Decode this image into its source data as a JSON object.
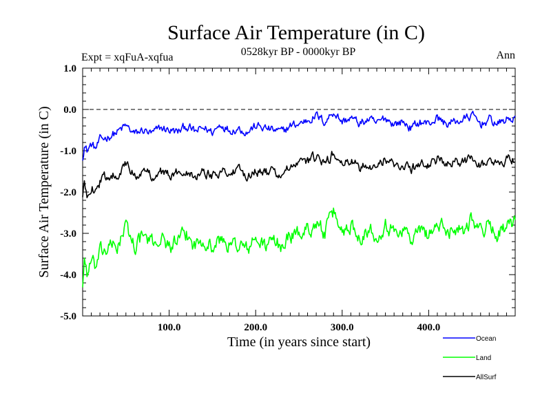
{
  "chart_data": {
    "type": "line",
    "title": "Surface Air Temperature (in C)",
    "subtitle": "0528kyr BP - 0000kyr BP",
    "experiment": "Expt = xqFuA-xqfua",
    "season": "Ann",
    "xlabel": "Time (in years since start)",
    "ylabel": "Surface Air Temperature (in C)",
    "xlim": [
      0,
      500
    ],
    "ylim": [
      -5.0,
      1.0
    ],
    "x_ticks": [
      100,
      200,
      300,
      400
    ],
    "x_tick_labels": [
      "100.0",
      "200.0",
      "300.0",
      "400.0"
    ],
    "y_ticks": [
      1.0,
      0.0,
      -1.0,
      -2.0,
      -3.0,
      -4.0,
      -5.0
    ],
    "y_tick_labels": [
      "1.0",
      "0.0",
      "-1.0",
      "-2.0",
      "-3.0",
      "-4.0",
      "-5.0"
    ],
    "reference_line": 0.0,
    "series": [
      {
        "name": "Ocean",
        "color": "#0000ff",
        "x": [
          0,
          2,
          5,
          10,
          15,
          20,
          30,
          40,
          50,
          60,
          70,
          80,
          90,
          100,
          110,
          120,
          130,
          140,
          150,
          160,
          170,
          180,
          190,
          200,
          210,
          220,
          230,
          240,
          250,
          260,
          270,
          280,
          290,
          300,
          310,
          320,
          330,
          340,
          350,
          360,
          370,
          380,
          390,
          400,
          410,
          420,
          430,
          440,
          450,
          460,
          470,
          480,
          490,
          500
        ],
        "values": [
          -1.15,
          -0.85,
          -1.0,
          -0.85,
          -0.95,
          -0.75,
          -0.65,
          -0.55,
          -0.4,
          -0.6,
          -0.5,
          -0.6,
          -0.45,
          -0.5,
          -0.55,
          -0.4,
          -0.55,
          -0.45,
          -0.55,
          -0.35,
          -0.5,
          -0.45,
          -0.55,
          -0.4,
          -0.45,
          -0.5,
          -0.55,
          -0.4,
          -0.35,
          -0.25,
          -0.15,
          -0.3,
          -0.05,
          -0.3,
          -0.2,
          -0.35,
          -0.25,
          -0.35,
          -0.2,
          -0.35,
          -0.3,
          -0.45,
          -0.3,
          -0.35,
          -0.2,
          -0.35,
          -0.3,
          -0.25,
          -0.15,
          -0.35,
          -0.25,
          -0.35,
          -0.25,
          -0.2
        ]
      },
      {
        "name": "Land",
        "color": "#00ff00",
        "x": [
          0,
          2,
          5,
          10,
          15,
          20,
          30,
          40,
          50,
          60,
          70,
          80,
          90,
          100,
          110,
          120,
          130,
          140,
          150,
          160,
          170,
          180,
          190,
          200,
          210,
          220,
          230,
          240,
          250,
          260,
          270,
          280,
          290,
          300,
          310,
          320,
          330,
          340,
          350,
          360,
          370,
          380,
          390,
          400,
          410,
          420,
          430,
          440,
          450,
          460,
          470,
          480,
          490,
          500
        ],
        "values": [
          -4.25,
          -3.6,
          -3.95,
          -3.7,
          -3.85,
          -3.5,
          -3.35,
          -3.3,
          -2.85,
          -3.3,
          -3.05,
          -3.25,
          -3.1,
          -3.3,
          -3.2,
          -3.05,
          -3.3,
          -3.1,
          -3.35,
          -3.15,
          -3.3,
          -3.25,
          -3.4,
          -3.15,
          -3.3,
          -3.2,
          -3.3,
          -3.05,
          -3.0,
          -2.9,
          -2.75,
          -3.0,
          -2.5,
          -2.95,
          -2.8,
          -3.05,
          -2.9,
          -3.05,
          -2.75,
          -3.0,
          -2.85,
          -3.15,
          -2.95,
          -3.0,
          -2.8,
          -2.95,
          -2.85,
          -2.9,
          -2.6,
          -2.95,
          -2.8,
          -3.0,
          -2.85,
          -2.8
        ]
      },
      {
        "name": "AllSurf",
        "color": "#000000",
        "x": [
          0,
          2,
          5,
          10,
          15,
          20,
          30,
          40,
          50,
          60,
          70,
          80,
          90,
          100,
          110,
          120,
          130,
          140,
          150,
          160,
          170,
          180,
          190,
          200,
          210,
          220,
          230,
          240,
          250,
          260,
          270,
          280,
          290,
          300,
          310,
          320,
          330,
          340,
          350,
          360,
          370,
          380,
          390,
          400,
          410,
          420,
          430,
          440,
          450,
          460,
          470,
          480,
          490,
          500
        ],
        "values": [
          -2.15,
          -1.8,
          -2.05,
          -1.85,
          -1.95,
          -1.75,
          -1.6,
          -1.55,
          -1.35,
          -1.6,
          -1.5,
          -1.6,
          -1.5,
          -1.6,
          -1.55,
          -1.45,
          -1.6,
          -1.5,
          -1.6,
          -1.45,
          -1.55,
          -1.5,
          -1.6,
          -1.45,
          -1.55,
          -1.5,
          -1.6,
          -1.4,
          -1.35,
          -1.25,
          -1.15,
          -1.35,
          -1.05,
          -1.35,
          -1.25,
          -1.4,
          -1.3,
          -1.4,
          -1.2,
          -1.35,
          -1.3,
          -1.45,
          -1.3,
          -1.35,
          -1.2,
          -1.35,
          -1.3,
          -1.3,
          -1.1,
          -1.35,
          -1.25,
          -1.35,
          -1.2,
          -1.2
        ]
      }
    ],
    "legend_position": "bottom-right"
  }
}
